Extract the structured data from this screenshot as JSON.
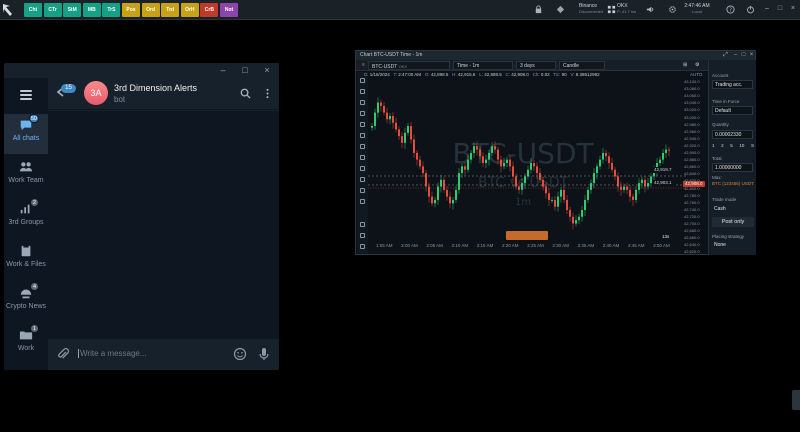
{
  "topbar": {
    "apps": [
      {
        "label": "Cht",
        "color": "#16a085"
      },
      {
        "label": "CTr",
        "color": "#16a085"
      },
      {
        "label": "StM",
        "color": "#16a085"
      },
      {
        "label": "MB",
        "color": "#16a085"
      },
      {
        "label": "TrS",
        "color": "#16a085"
      },
      {
        "label": "Pos",
        "color": "#c8a216"
      },
      {
        "label": "Ord",
        "color": "#c8a216"
      },
      {
        "label": "Trd",
        "color": "#c8a216"
      },
      {
        "label": "OrH",
        "color": "#c8a216"
      },
      {
        "label": "CrB",
        "color": "#c0392b"
      },
      {
        "label": "Not",
        "color": "#8e44ad"
      }
    ],
    "exchange1": {
      "name": "Binance",
      "status": "Disconnected"
    },
    "exchange2": {
      "name": "OKX",
      "status": "P: 41.7 ms"
    },
    "clock": {
      "time": "2:47:46 AM",
      "zone": "Local"
    }
  },
  "telegram": {
    "chat_name": "3rd Dimension Alerts",
    "chat_sub": "bot",
    "avatar_initials": "3A",
    "back_badge": "15",
    "input_placeholder": "Write a message...",
    "folders": [
      {
        "label": "All chats",
        "badge": "50",
        "active": true
      },
      {
        "label": "Work Team",
        "badge": "",
        "active": false
      },
      {
        "label": "3rd Groups",
        "badge": "2",
        "active": false
      },
      {
        "label": "Work & Files",
        "badge": "",
        "active": false
      },
      {
        "label": "Crypto News",
        "badge": "4",
        "active": false
      },
      {
        "label": "Work",
        "badge": "1",
        "active": false
      }
    ]
  },
  "chart_window": {
    "title": "Chart BTC-USDT Time - 1m",
    "symbol": "BTC-USDT",
    "symbol_exchange": "OKX",
    "timeframe": "Time - 1m",
    "range": "3 days",
    "chart_style": "Candle",
    "ohlc": {
      "date_label": "D:",
      "date": "1/16/2024",
      "time_label": "T:",
      "time": "2:47:00 AM",
      "open_label": "O:",
      "open": "42,898.5",
      "high_label": "H:",
      "high": "42,915.6",
      "low_label": "L:",
      "low": "42,898.5",
      "close_label": "C:",
      "close": "42,908.0",
      "chg_label": "Ch:",
      "change": "0.02",
      "ticks_label": "Tic:",
      "ticks": "90",
      "vol_label": "V:",
      "volume": "8.38512982"
    },
    "watermark_main": "BTC-USDT",
    "watermark_sub": "BTC vs USDT",
    "watermark_frame": "1m",
    "price_marker_1": "42,919.7",
    "price_marker_2": "42,903.1",
    "price_tag_red": "42,908.0",
    "countdown": "13s",
    "auto_label": "AUTO",
    "panel": {
      "account_label": "Account",
      "account_value": "Trading acc.",
      "tif_label": "Time in Force",
      "tif_value": "Default",
      "qty_label": "Quantity",
      "qty_value": "0.00002330",
      "qty_presets": [
        "1",
        "2",
        "5",
        "10",
        "S"
      ],
      "total_label": "Total",
      "total_value": "1.00000000",
      "max_label": "Max:",
      "max_value": "BTC (123456) USDT",
      "trade_mode_label": "Trade mode",
      "trade_mode_value": "Cash",
      "post_only": "Post only",
      "placing_label": "Placing strategy",
      "placing_value": "None"
    }
  },
  "chart_data": {
    "type": "candlestick",
    "title": "BTC-USDT",
    "y_ticks": [
      "43,100.0",
      "43,080.0",
      "43,060.0",
      "43,040.0",
      "43,020.0",
      "43,000.0",
      "42,980.0",
      "42,960.0",
      "42,940.0",
      "42,920.0",
      "42,900.0",
      "42,880.0",
      "42,860.0",
      "42,840.0",
      "42,820.0",
      "42,800.0",
      "42,780.0",
      "42,760.0",
      "42,740.0",
      "42,720.0",
      "42,700.0",
      "42,680.0",
      "42,660.0",
      "42,640.0",
      "42,620.0"
    ],
    "ylim": [
      42620,
      43120
    ],
    "x_ticks": [
      "1:55 AM",
      "2:00 AM",
      "2:05 AM",
      "2:10 AM",
      "2:15 AM",
      "2:20 AM",
      "2:25 AM",
      "2:30 AM",
      "2:35 AM",
      "2:40 AM",
      "2:45 AM",
      "2:50 AM"
    ],
    "close": [
      42980,
      43020,
      43050,
      43040,
      43020,
      43000,
      43010,
      42990,
      42970,
      42950,
      42930,
      42960,
      42980,
      42940,
      42900,
      42880,
      42860,
      42840,
      42800,
      42770,
      42750,
      42760,
      42800,
      42820,
      42790,
      42770,
      42750,
      42760,
      42790,
      42840,
      42860,
      42850,
      42880,
      42900,
      42920,
      42910,
      42890,
      42870,
      42880,
      42900,
      42920,
      42910,
      42880,
      42860,
      42870,
      42880,
      42860,
      42830,
      42800,
      42790,
      42810,
      42830,
      42850,
      42870,
      42860,
      42840,
      42820,
      42800,
      42780,
      42760,
      42760,
      42740,
      42770,
      42790,
      42760,
      42730,
      42710,
      42690,
      42700,
      42710,
      42730,
      42760,
      42790,
      42810,
      42840,
      42860,
      42880,
      42900,
      42890,
      42870,
      42850,
      42830,
      42800,
      42790,
      42800,
      42790,
      42770,
      42760,
      42790,
      42810,
      42820,
      42800,
      42810,
      42830,
      42850,
      42870,
      42880,
      42900,
      42910,
      42908
    ]
  }
}
